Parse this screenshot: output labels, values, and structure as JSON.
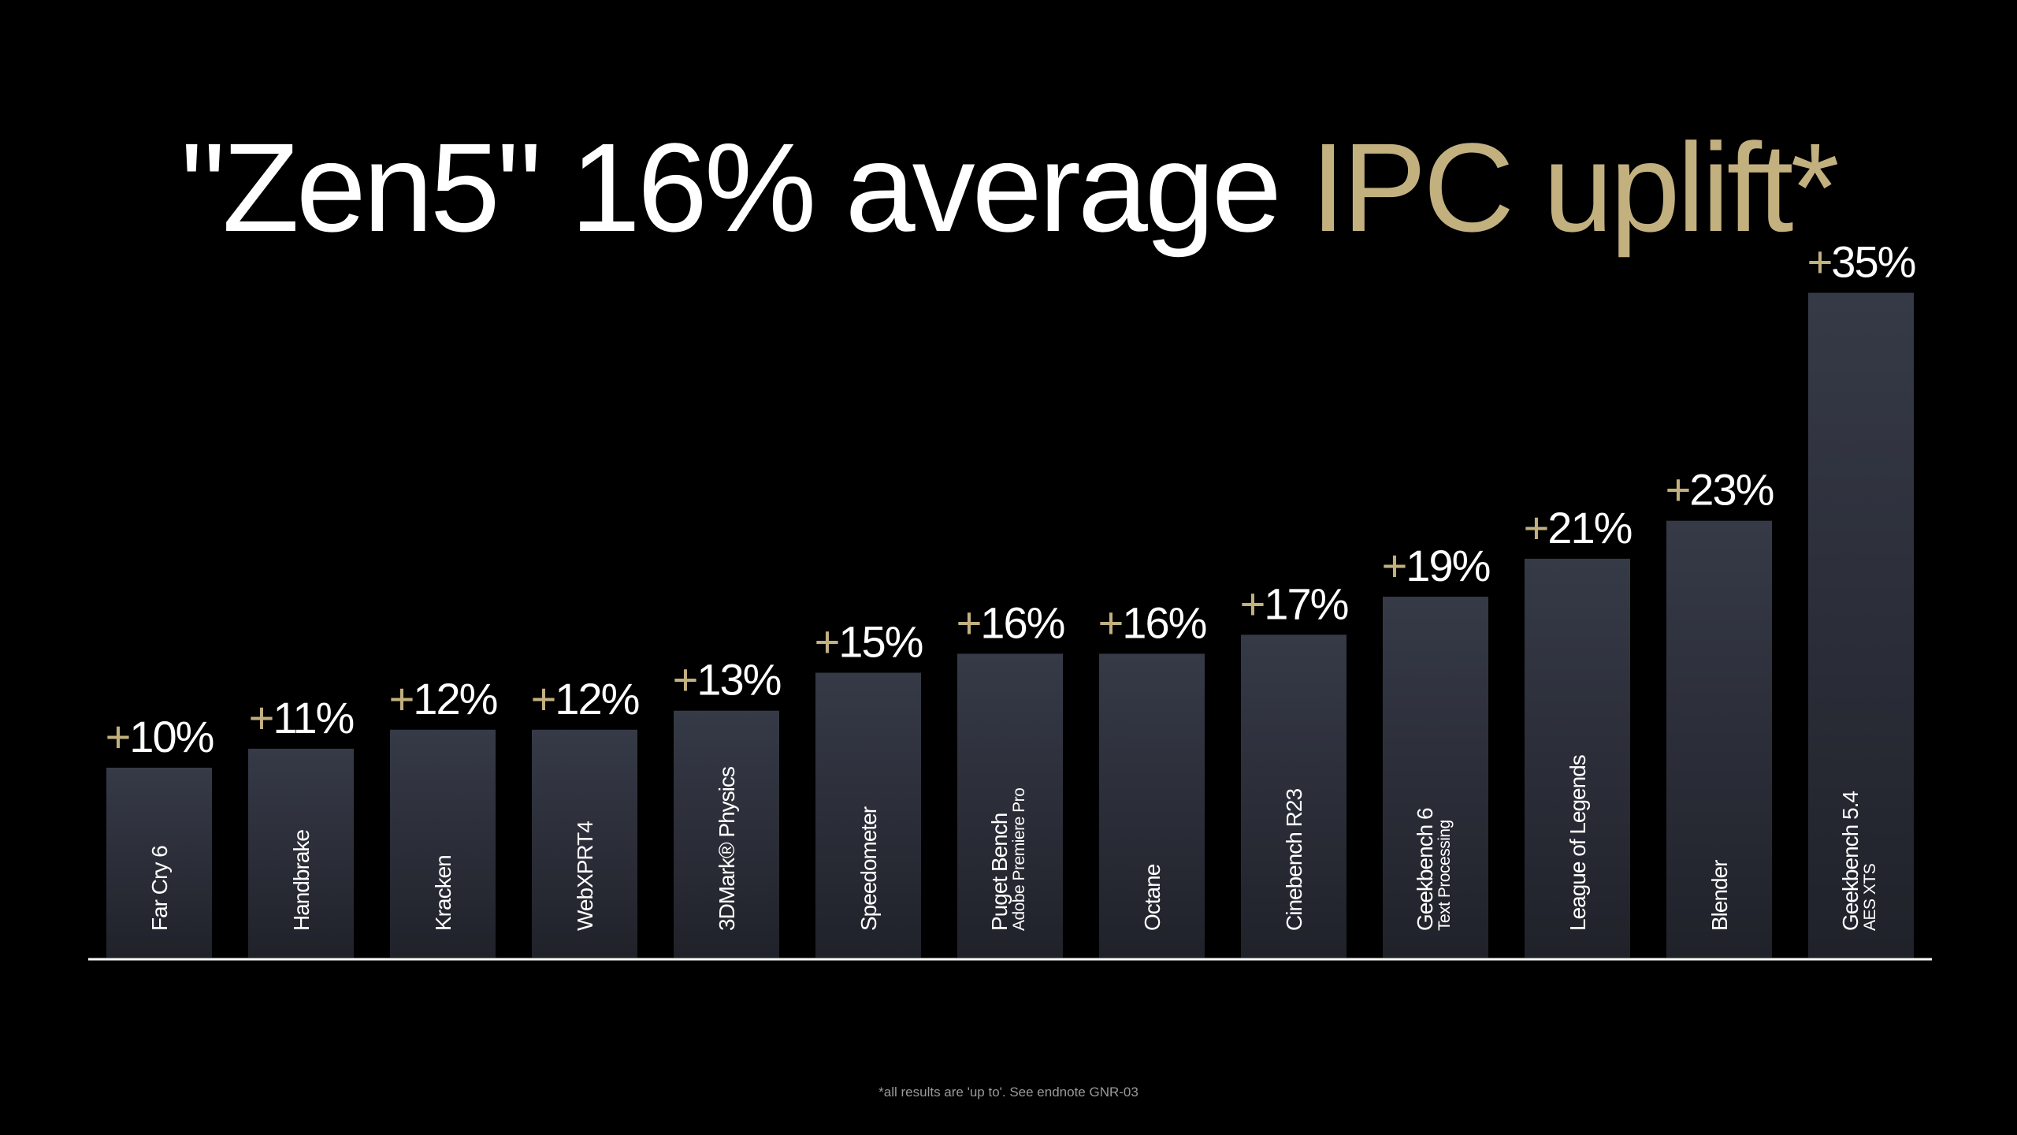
{
  "title": {
    "part1": "\"Zen5\" 16% average ",
    "part2": "IPC uplift*"
  },
  "footnote": "*all results are 'up to'. See endnote GNR-03",
  "colors": {
    "background": "#000000",
    "title_white": "#ffffff",
    "title_gold": "#c2b07f",
    "plus_sign": "#c2b07f",
    "bar_top": "#363a47",
    "bar_bottom": "#20222a",
    "baseline": "#ffffff",
    "category_text": "#ffffff",
    "value_text": "#ffffff"
  },
  "chart_data": {
    "type": "bar",
    "categories": [
      "Far Cry 6",
      "Handbrake",
      "Kracken",
      "WebXPRT4",
      "3DMark® Physics",
      "Speedometer",
      "Puget Bench",
      "Octane",
      "Cinebench R23",
      "Geekbench 6",
      "League of Legends",
      "Blender",
      "Geekbench 5.4"
    ],
    "subcategories": [
      "",
      "",
      "",
      "",
      "",
      "",
      "Adobe Premiere Pro",
      "",
      "",
      "Text Processing",
      "",
      "",
      "AES XTS"
    ],
    "values": [
      10,
      11,
      12,
      12,
      13,
      15,
      16,
      16,
      17,
      19,
      21,
      23,
      35
    ],
    "labels": [
      "+10%",
      "+11%",
      "+12%",
      "+12%",
      "+13%",
      "+15%",
      "+16%",
      "+16%",
      "+17%",
      "+19%",
      "+21%",
      "+23%",
      "+35%"
    ],
    "title": "\"Zen5\" 16% average IPC uplift*",
    "xlabel": "",
    "ylabel": "",
    "ylim": [
      0,
      35
    ],
    "grid": false,
    "legend": "none"
  }
}
